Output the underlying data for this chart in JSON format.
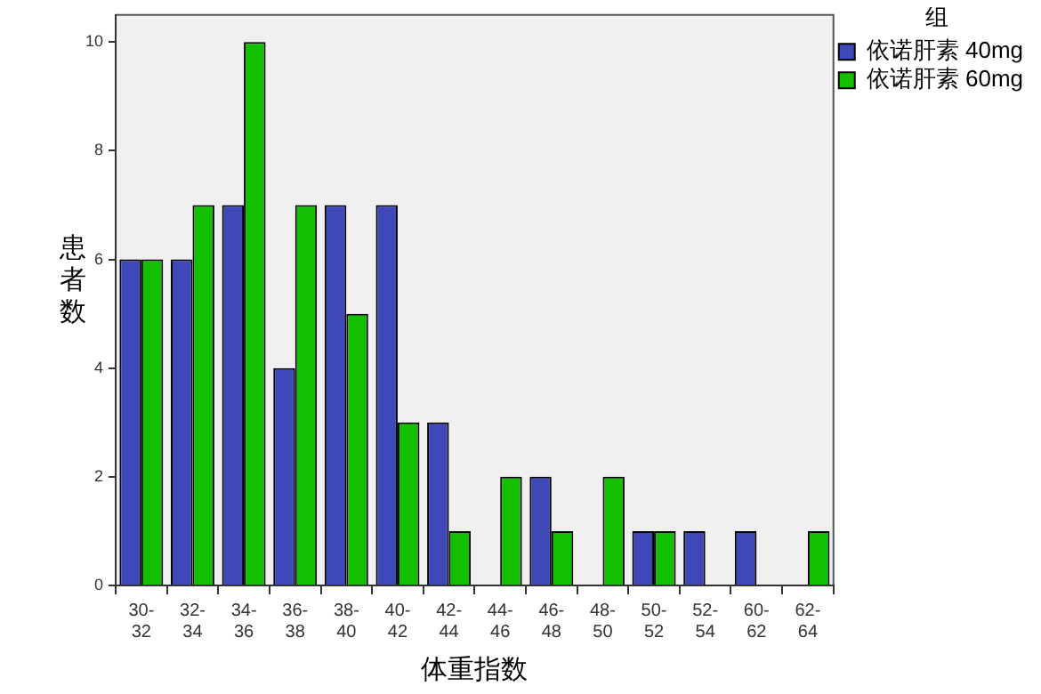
{
  "chart_data": {
    "type": "bar",
    "xlabel": "体重指数",
    "ylabel": "患者数",
    "legend_title": "组",
    "legend": "top right",
    "grid": false,
    "categories": [
      "30-32",
      "32-34",
      "34-36",
      "36-38",
      "38-40",
      "40-42",
      "42-44",
      "44-46",
      "46-48",
      "48-50",
      "50-52",
      "52-54",
      "60-62",
      "62-64"
    ],
    "ylim": [
      0,
      10.5
    ],
    "yticks": [
      0,
      2,
      4,
      6,
      8,
      10
    ],
    "series": [
      {
        "name": "依诺肝素 40mg",
        "color": "#3f48b8",
        "values": [
          6,
          6,
          7,
          4,
          7,
          7,
          3,
          0,
          2,
          0,
          1,
          1,
          1,
          0
        ]
      },
      {
        "name": "依诺肝素 60mg",
        "color": "#12c000",
        "values": [
          6,
          7,
          10,
          7,
          5,
          3,
          1,
          2,
          1,
          2,
          1,
          0,
          0,
          1
        ]
      }
    ]
  }
}
